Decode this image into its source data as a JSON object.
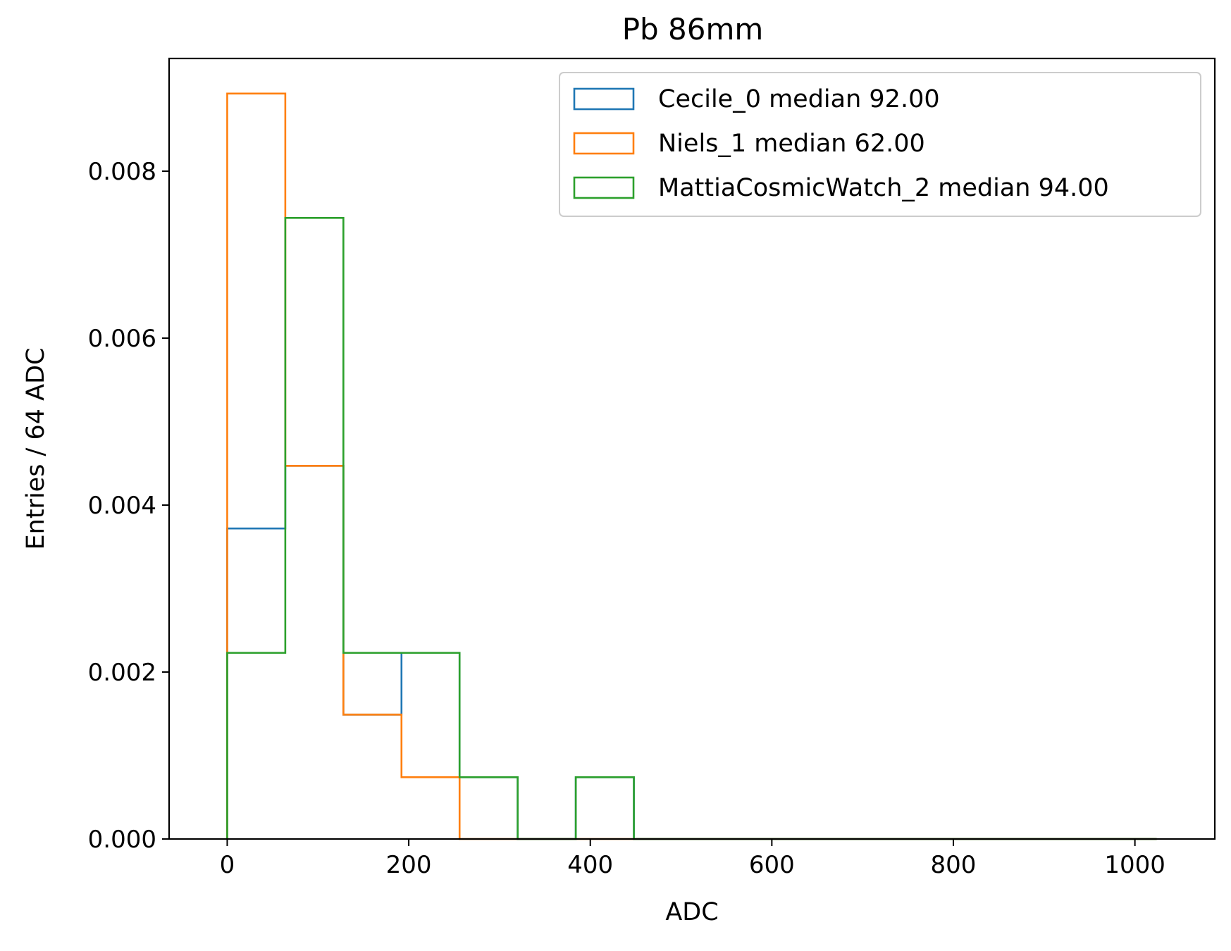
{
  "chart_data": {
    "type": "histogram-step",
    "title": "Pb 86mm",
    "xlabel": "ADC",
    "ylabel": "Entries / 64 ADC",
    "xlim": [
      -64,
      1088
    ],
    "ylim": [
      0,
      0.00935
    ],
    "xticks": [
      0,
      200,
      400,
      600,
      800,
      1000
    ],
    "xtick_labels": [
      "0",
      "200",
      "400",
      "600",
      "800",
      "1000"
    ],
    "yticks": [
      0,
      0.002,
      0.004,
      0.006,
      0.008
    ],
    "ytick_labels": [
      "0.000",
      "0.002",
      "0.004",
      "0.006",
      "0.008"
    ],
    "bin_edges": [
      0,
      64,
      128,
      192,
      256,
      320,
      384,
      448,
      512,
      576,
      640,
      704,
      768,
      832,
      896,
      960,
      1024
    ],
    "grid": false,
    "legend_position": "top-right",
    "series": [
      {
        "name": "Cecile_0 median 92.00",
        "color": "#1f77b4",
        "values": [
          0.00372,
          0.00447,
          0.00149,
          0.00223,
          0.00074,
          0,
          0.00074,
          0,
          0,
          0,
          0,
          0,
          0,
          0,
          0,
          0
        ]
      },
      {
        "name": "Niels_1 median 62.00",
        "color": "#ff7f0e",
        "values": [
          0.00893,
          0.00447,
          0.00149,
          0.00074,
          0,
          0,
          0,
          0,
          0,
          0,
          0,
          0,
          0,
          0,
          0,
          0
        ]
      },
      {
        "name": "MattiaCosmicWatch_2 median 94.00",
        "color": "#2ca02c",
        "values": [
          0.00223,
          0.00744,
          0.00223,
          0.00223,
          0.00074,
          0,
          0.00074,
          0,
          0,
          0,
          0,
          0,
          0,
          0,
          0,
          0
        ]
      }
    ]
  }
}
